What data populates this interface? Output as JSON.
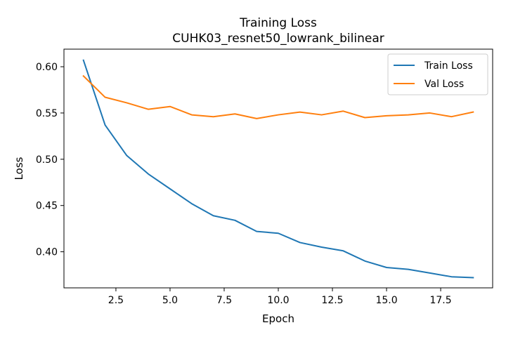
{
  "chart_data": {
    "type": "line",
    "title": "Training Loss",
    "subtitle": "CUHK03_resnet50_lowrank_bilinear",
    "xlabel": "Epoch",
    "ylabel": "Loss",
    "xlim": [
      0.1,
      19.9
    ],
    "ylim": [
      0.361,
      0.619
    ],
    "x_ticks": [
      2.5,
      5.0,
      7.5,
      10.0,
      12.5,
      15.0,
      17.5
    ],
    "x_tick_labels": [
      "2.5",
      "5.0",
      "7.5",
      "10.0",
      "12.5",
      "15.0",
      "17.5"
    ],
    "y_ticks": [
      0.4,
      0.45,
      0.5,
      0.55,
      0.6
    ],
    "y_tick_labels": [
      "0.40",
      "0.45",
      "0.50",
      "0.55",
      "0.60"
    ],
    "grid": false,
    "legend_position": "top-right",
    "x": [
      1,
      2,
      3,
      4,
      5,
      6,
      7,
      8,
      9,
      10,
      11,
      12,
      13,
      14,
      15,
      16,
      17,
      18,
      19
    ],
    "series": [
      {
        "name": "Train Loss",
        "color": "#1f77b4",
        "values": [
          0.607,
          0.537,
          0.504,
          0.484,
          0.468,
          0.452,
          0.439,
          0.434,
          0.422,
          0.42,
          0.41,
          0.405,
          0.401,
          0.39,
          0.383,
          0.381,
          0.377,
          0.373,
          0.372
        ]
      },
      {
        "name": "Val Loss",
        "color": "#ff7f0e",
        "values": [
          0.59,
          0.567,
          0.561,
          0.554,
          0.557,
          0.548,
          0.546,
          0.549,
          0.544,
          0.548,
          0.551,
          0.548,
          0.552,
          0.545,
          0.547,
          0.548,
          0.55,
          0.546,
          0.551
        ]
      }
    ]
  }
}
